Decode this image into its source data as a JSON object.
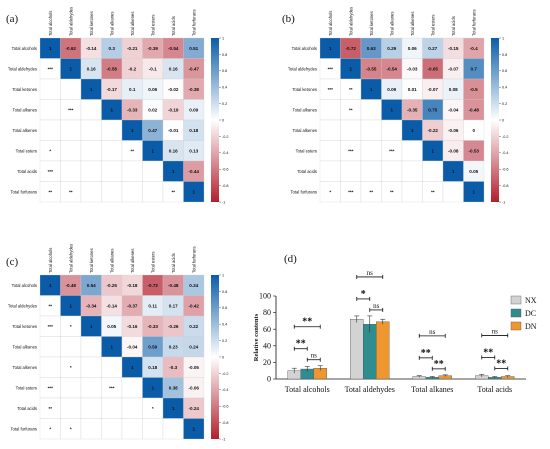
{
  "variables": [
    "Total alcohols",
    "Total aldehydes",
    "Total ketones",
    "Total alkanes",
    "Total alkenes",
    "Total esters",
    "Total acids",
    "Total furfurans"
  ],
  "colorbar_ticks": [
    "1",
    "0.8",
    "0.6",
    "0.4",
    "0.2",
    "0",
    "-0.2",
    "-0.4",
    "-0.6",
    "-0.8",
    "-1"
  ],
  "colors": {
    "positive": "#0a5ca8",
    "negative": "#b21f2d",
    "neutral": "#ffffff",
    "nx": "#d3d3d3",
    "dc": "#2f8c8f",
    "dn": "#f0962e"
  },
  "chart_data": [
    {
      "type": "heatmap",
      "label": "(a)",
      "upper": [
        [
          null,
          -0.62,
          -0.14,
          0.3,
          -0.21,
          -0.39,
          -0.54,
          0.51
        ],
        [
          null,
          null,
          0.16,
          -0.58,
          -0.2,
          -0.1,
          0.16,
          -0.47
        ],
        [
          null,
          null,
          null,
          -0.17,
          0.1,
          0.06,
          -0.02,
          -0.38
        ],
        [
          null,
          null,
          null,
          null,
          -0.33,
          0.02,
          -0.19,
          0.09
        ],
        [
          null,
          null,
          null,
          null,
          null,
          0.47,
          -0.01,
          0.18
        ],
        [
          null,
          null,
          null,
          null,
          null,
          null,
          0.16,
          0.13
        ],
        [
          null,
          null,
          null,
          null,
          null,
          null,
          null,
          -0.44
        ],
        [
          null,
          null,
          null,
          null,
          null,
          null,
          null,
          null
        ]
      ],
      "lower": [
        [
          "",
          "",
          "",
          "",
          "",
          "",
          "",
          ""
        ],
        [
          "***",
          "",
          "",
          "",
          "",
          "",
          "",
          ""
        ],
        [
          "",
          "",
          "",
          "",
          "",
          "",
          "",
          ""
        ],
        [
          "",
          "***",
          "",
          "",
          "",
          "",
          "",
          ""
        ],
        [
          "",
          "",
          "",
          "",
          "",
          "",
          "",
          ""
        ],
        [
          "*",
          "",
          "",
          "",
          "**",
          "",
          "",
          ""
        ],
        [
          "***",
          "",
          "",
          "",
          "",
          "",
          "",
          ""
        ],
        [
          "**",
          "**",
          "",
          "",
          "",
          "",
          "**",
          ""
        ]
      ]
    },
    {
      "type": "heatmap",
      "label": "(b)",
      "upper": [
        [
          null,
          -0.72,
          0.63,
          0.29,
          0.06,
          0.27,
          -0.15,
          -0.4
        ],
        [
          null,
          null,
          -0.55,
          -0.54,
          -0.03,
          -0.65,
          -0.07,
          0.7
        ],
        [
          null,
          null,
          null,
          0.09,
          0.01,
          -0.07,
          0.08,
          -0.5
        ],
        [
          null,
          null,
          null,
          null,
          -0.35,
          0.75,
          -0.04,
          -0.48
        ],
        [
          null,
          null,
          null,
          null,
          null,
          -0.22,
          -0.06,
          0
        ],
        [
          null,
          null,
          null,
          null,
          null,
          null,
          -0.08,
          -0.53
        ],
        [
          null,
          null,
          null,
          null,
          null,
          null,
          null,
          0.05
        ],
        [
          null,
          null,
          null,
          null,
          null,
          null,
          null,
          null
        ]
      ],
      "lower": [
        [
          "",
          "",
          "",
          "",
          "",
          "",
          "",
          ""
        ],
        [
          "***",
          "",
          "",
          "",
          "",
          "",
          "",
          ""
        ],
        [
          "***",
          "**",
          "",
          "",
          "",
          "",
          "",
          ""
        ],
        [
          "",
          "**",
          "",
          "",
          "",
          "",
          "",
          ""
        ],
        [
          "",
          "",
          "",
          "",
          "",
          "",
          "",
          ""
        ],
        [
          "",
          "***",
          "",
          "***",
          "",
          "",
          "",
          ""
        ],
        [
          "",
          "",
          "",
          "",
          "",
          "",
          "",
          ""
        ],
        [
          "*",
          "***",
          "**",
          "**",
          "",
          "**",
          "",
          ""
        ]
      ]
    },
    {
      "type": "heatmap",
      "label": "(c)",
      "upper": [
        [
          null,
          -0.48,
          0.54,
          -0.25,
          -0.18,
          -0.72,
          -0.48,
          0.34
        ],
        [
          null,
          null,
          -0.34,
          -0.14,
          -0.37,
          0.11,
          0.17,
          -0.42
        ],
        [
          null,
          null,
          null,
          0.05,
          -0.16,
          -0.33,
          -0.26,
          0.22
        ],
        [
          null,
          null,
          null,
          null,
          -0.04,
          0.59,
          0.23,
          0.24
        ],
        [
          null,
          null,
          null,
          null,
          null,
          0.18,
          -0.3,
          -0.05
        ],
        [
          null,
          null,
          null,
          null,
          null,
          null,
          0.38,
          -0.06
        ],
        [
          null,
          null,
          null,
          null,
          null,
          null,
          null,
          -0.24
        ],
        [
          null,
          null,
          null,
          null,
          null,
          null,
          null,
          null
        ]
      ],
      "lower": [
        [
          "",
          "",
          "",
          "",
          "",
          "",
          "",
          ""
        ],
        [
          "**",
          "",
          "",
          "",
          "",
          "",
          "",
          ""
        ],
        [
          "***",
          "*",
          "",
          "",
          "",
          "",
          "",
          ""
        ],
        [
          "",
          "",
          "",
          "",
          "",
          "",
          "",
          ""
        ],
        [
          "",
          "*",
          "",
          "",
          "",
          "",
          "",
          ""
        ],
        [
          "***",
          "",
          "",
          "***",
          "",
          "",
          "",
          ""
        ],
        [
          "**",
          "",
          "",
          "",
          "",
          "*",
          "",
          ""
        ],
        [
          "*",
          "*",
          "",
          "",
          "",
          "",
          "",
          ""
        ]
      ]
    },
    {
      "type": "bar",
      "label": "(d)",
      "ylabel": "Relative contents",
      "categories": [
        "Total alcohols",
        "Total aldehydes",
        "Total alkanes",
        "Total acids"
      ],
      "ylim": [
        0,
        100
      ],
      "yticks": [
        "0",
        "20",
        "40",
        "60",
        "80",
        "100"
      ],
      "legend_position": "top-right",
      "series": [
        {
          "name": "NX",
          "values": [
            10,
            72,
            3,
            4
          ],
          "errors": [
            3,
            4,
            1,
            1.5
          ]
        },
        {
          "name": "DC",
          "values": [
            12,
            66,
            2,
            2
          ],
          "errors": [
            3,
            10,
            1,
            1
          ]
        },
        {
          "name": "DN",
          "values": [
            13,
            69,
            4,
            3
          ],
          "errors": [
            3,
            3,
            1,
            1
          ]
        }
      ],
      "significance": [
        {
          "group": 0,
          "from": 0,
          "to": 1,
          "text": "**"
        },
        {
          "group": 0,
          "from": 0,
          "to": 2,
          "text": "**"
        },
        {
          "group": 0,
          "from": 1,
          "to": 2,
          "text": "ns"
        },
        {
          "group": 1,
          "from": 0,
          "to": 1,
          "text": "*"
        },
        {
          "group": 1,
          "from": 0,
          "to": 2,
          "text": "ns"
        },
        {
          "group": 1,
          "from": 1,
          "to": 2,
          "text": "ns"
        },
        {
          "group": 2,
          "from": 0,
          "to": 1,
          "text": "**"
        },
        {
          "group": 2,
          "from": 0,
          "to": 2,
          "text": "ns"
        },
        {
          "group": 2,
          "from": 1,
          "to": 2,
          "text": "**"
        },
        {
          "group": 3,
          "from": 0,
          "to": 1,
          "text": "**"
        },
        {
          "group": 3,
          "from": 0,
          "to": 2,
          "text": "ns"
        },
        {
          "group": 3,
          "from": 1,
          "to": 2,
          "text": "**"
        }
      ]
    }
  ]
}
